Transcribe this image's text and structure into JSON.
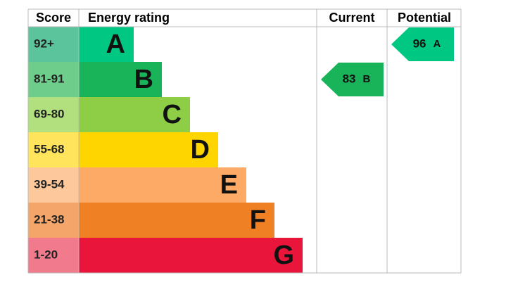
{
  "header": {
    "score": "Score",
    "rating": "Energy rating",
    "current": "Current",
    "potential": "Potential"
  },
  "bands": [
    {
      "score": "92+",
      "letter": "A",
      "color": "#00c781",
      "score_color": "#5cc49c"
    },
    {
      "score": "81-91",
      "letter": "B",
      "color": "#19b459",
      "score_color": "#6fcd8b"
    },
    {
      "score": "69-80",
      "letter": "C",
      "color": "#8dce46",
      "score_color": "#b2e07e"
    },
    {
      "score": "55-68",
      "letter": "D",
      "color": "#ffd500",
      "score_color": "#ffe45c"
    },
    {
      "score": "39-54",
      "letter": "E",
      "color": "#fcaa65",
      "score_color": "#fdc99c"
    },
    {
      "score": "21-38",
      "letter": "F",
      "color": "#ef8023",
      "score_color": "#f4a66a"
    },
    {
      "score": "1-20",
      "letter": "G",
      "color": "#e9153b",
      "score_color": "#f27a8d"
    }
  ],
  "current": {
    "value": 83,
    "letter": "B",
    "color": "#19b459"
  },
  "potential": {
    "value": 96,
    "letter": "A",
    "color": "#00c781"
  }
}
